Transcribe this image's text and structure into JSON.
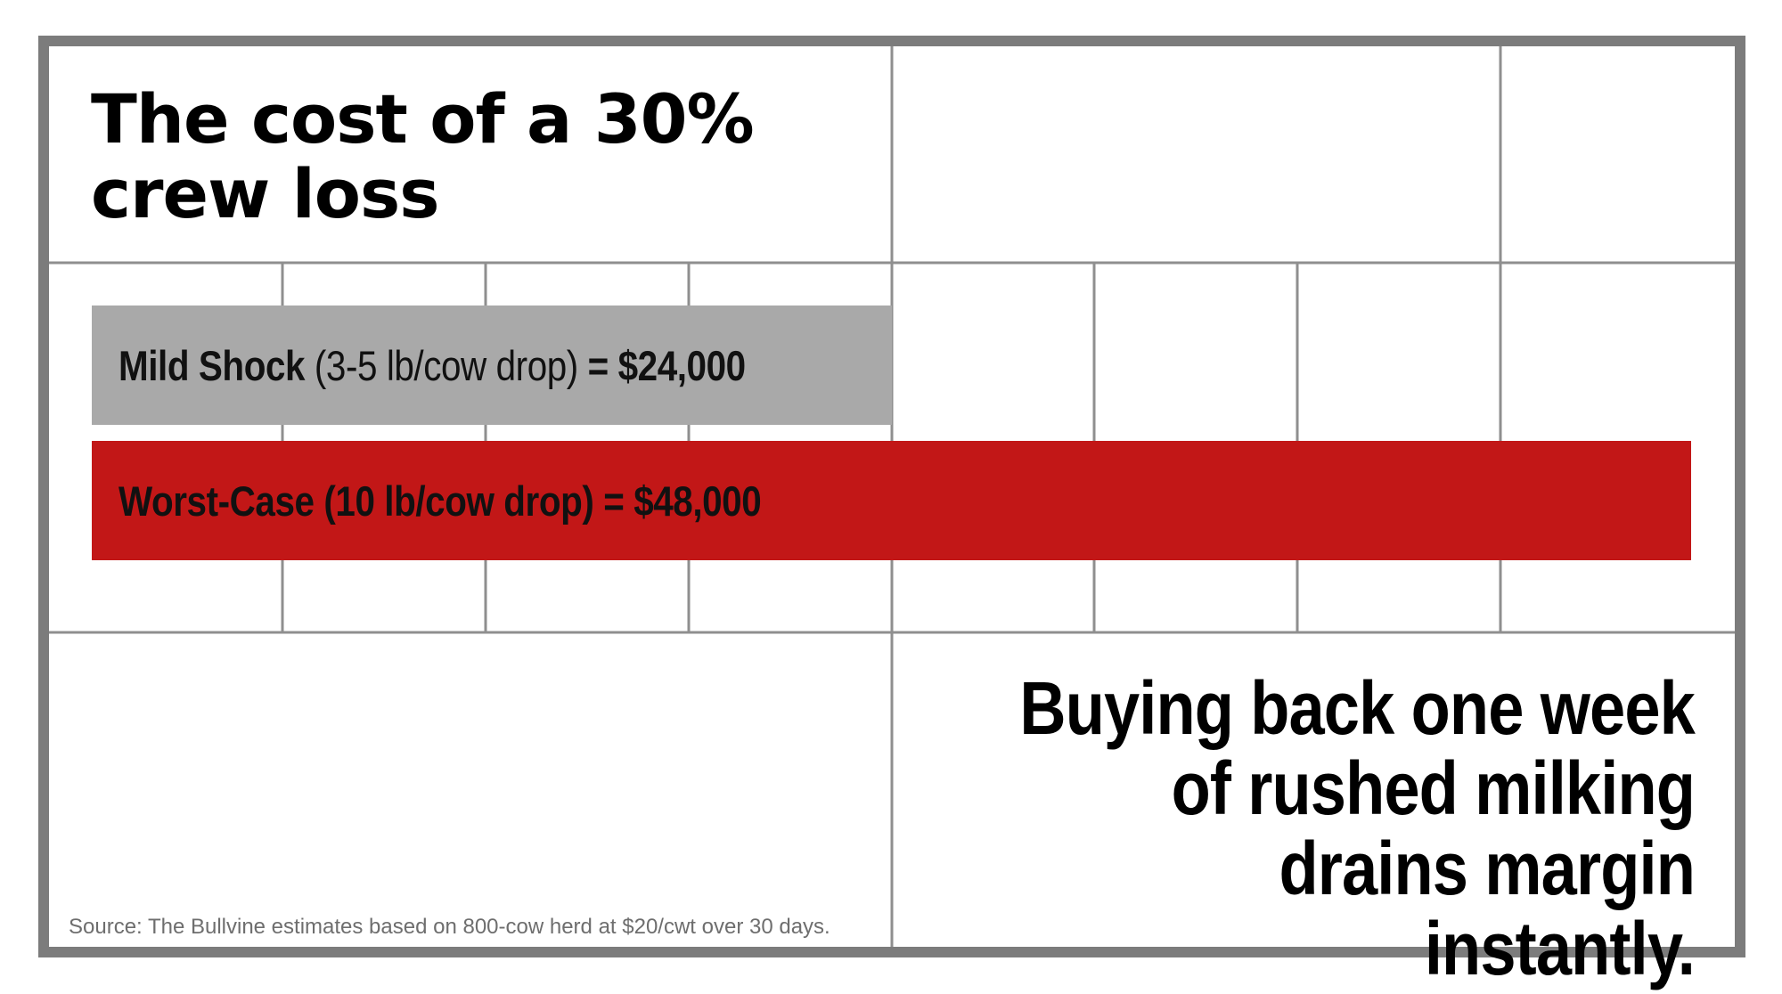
{
  "title": "The cost of a 30% crew loss",
  "tagline": "Buying back one week of rushed milking drains margin instantly.",
  "source": "Source: The Bullvine estimates based on 800-cow herd at $20/cwt over 30 days.",
  "chart_data": {
    "type": "bar",
    "orientation": "horizontal",
    "categories": [
      "Mild Shock",
      "Worst-Case"
    ],
    "values": [
      24000,
      48000
    ],
    "bars": [
      {
        "name": "Mild Shock",
        "detail": "(3-5 lb/cow drop)",
        "equals": "=",
        "value_label": "$24,000",
        "value": 24000,
        "color": "#a9a9a9"
      },
      {
        "name": "Worst-Case",
        "detail": "(10 lb/cow drop)",
        "equals": "=",
        "value_label": "$48,000",
        "value": 48000,
        "color": "#c21717"
      }
    ],
    "xlim": [
      0,
      48000
    ],
    "grid": true,
    "title": "The cost of a 30% crew loss",
    "xlabel": "",
    "ylabel": ""
  }
}
